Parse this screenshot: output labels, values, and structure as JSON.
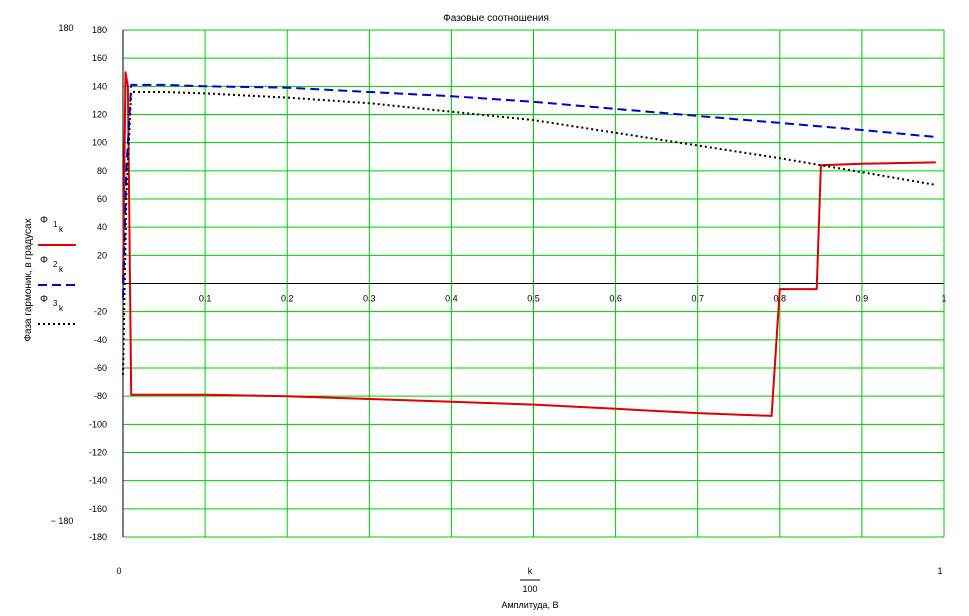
{
  "chart_data": {
    "type": "line",
    "title": "Фазовые соотношения",
    "ylabel": "Фаза гармоник, в градусах",
    "xlabel_num": "k",
    "xlabel_den": "100",
    "xlabel": "Амплитуда, В",
    "xlim": [
      0,
      1
    ],
    "ylim": [
      -180,
      180
    ],
    "grid": true,
    "x_ticks": [
      "0.1",
      "0.2",
      "0.3",
      "0.4",
      "0.5",
      "0.6",
      "0.7",
      "0.8",
      "0.9",
      "1"
    ],
    "y_ticks": [
      "180",
      "160",
      "140",
      "120",
      "100",
      "80",
      "60",
      "40",
      "20",
      "-20",
      "-40",
      "-60",
      "-80",
      "-100",
      "-120",
      "-140",
      "-160",
      "-180"
    ],
    "x_min_label": "0",
    "x_max_label": "1",
    "y_max_label": "180",
    "y_min_label": "− 180",
    "legend_position": "left",
    "series": [
      {
        "name": "Φ",
        "subscript": "1",
        "subsub": "k",
        "color": "#e00000",
        "dash": "solid",
        "points": [
          [
            0,
            0
          ],
          [
            0.003,
            150
          ],
          [
            0.006,
            140
          ],
          [
            0.01,
            -79
          ],
          [
            0.1,
            -79
          ],
          [
            0.2,
            -80
          ],
          [
            0.3,
            -82
          ],
          [
            0.4,
            -84
          ],
          [
            0.5,
            -86
          ],
          [
            0.6,
            -89
          ],
          [
            0.7,
            -92
          ],
          [
            0.79,
            -94
          ],
          [
            0.8,
            -4
          ],
          [
            0.845,
            -4
          ],
          [
            0.85,
            84
          ],
          [
            0.9,
            85
          ],
          [
            0.99,
            86
          ]
        ]
      },
      {
        "name": "Φ",
        "subscript": "2",
        "subsub": "k",
        "color": "#0000cc",
        "dash": "dashed",
        "points": [
          [
            0,
            -10
          ],
          [
            0.004,
            80
          ],
          [
            0.01,
            141
          ],
          [
            0.05,
            141
          ],
          [
            0.1,
            140
          ],
          [
            0.2,
            139
          ],
          [
            0.3,
            136
          ],
          [
            0.4,
            133
          ],
          [
            0.5,
            129
          ],
          [
            0.6,
            124
          ],
          [
            0.7,
            119
          ],
          [
            0.8,
            114
          ],
          [
            0.9,
            109
          ],
          [
            0.99,
            104
          ]
        ]
      },
      {
        "name": "Φ",
        "subscript": "3",
        "subsub": "k",
        "color": "#000000",
        "dash": "dotted",
        "points": [
          [
            0,
            -65
          ],
          [
            0.004,
            60
          ],
          [
            0.01,
            136
          ],
          [
            0.05,
            136
          ],
          [
            0.1,
            135
          ],
          [
            0.2,
            132
          ],
          [
            0.3,
            128
          ],
          [
            0.4,
            122
          ],
          [
            0.5,
            116
          ],
          [
            0.6,
            107
          ],
          [
            0.7,
            98
          ],
          [
            0.8,
            89
          ],
          [
            0.9,
            79
          ],
          [
            0.99,
            70
          ]
        ]
      }
    ]
  }
}
